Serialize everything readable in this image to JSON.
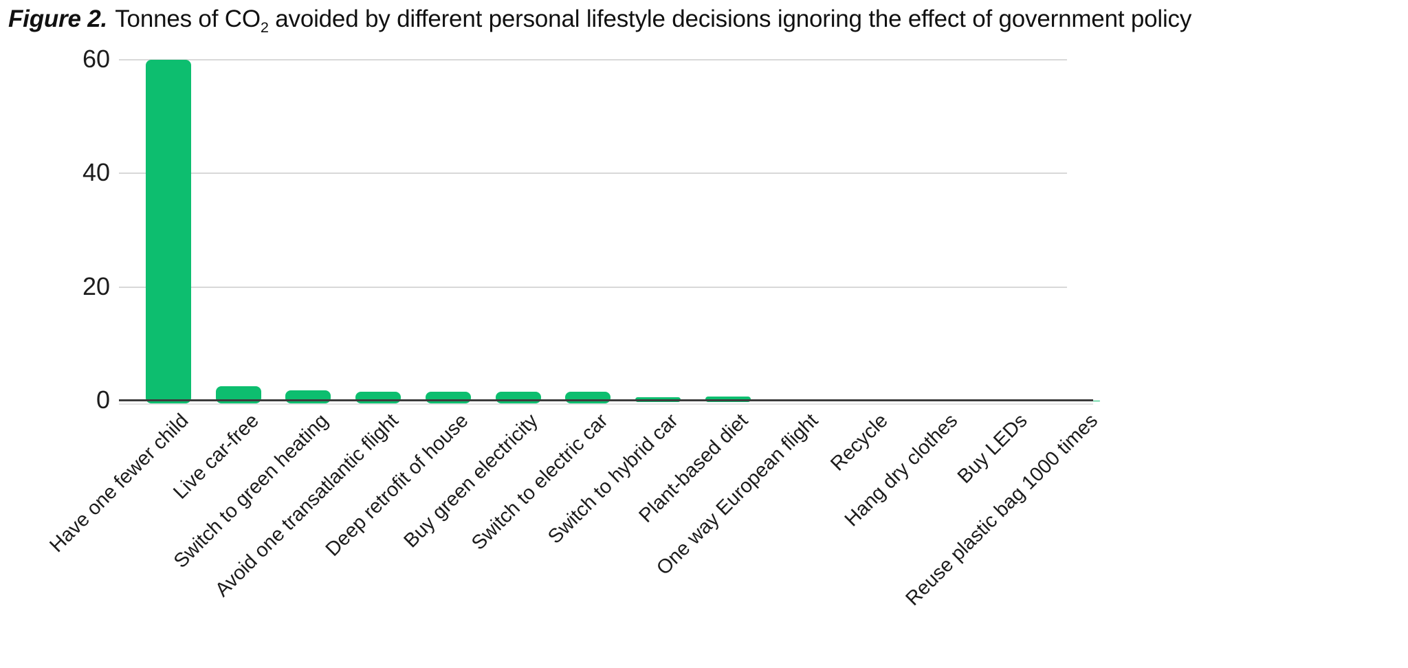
{
  "figure_label": "Figure 2.",
  "title": {
    "prefix": "Tonnes of CO",
    "subscript": "2",
    "suffix": " avoided by different personal lifestyle decisions ignoring the effect of government policy"
  },
  "colors": {
    "bar": "#0dbe6f",
    "gridline": "#d8d8d8",
    "axis_line": "#3c3c3c",
    "text": "#1c1c1c"
  },
  "chart_data": {
    "type": "bar",
    "title": "Figure 2. Tonnes of CO2 avoided by different personal lifestyle decisions ignoring the effect of government policy",
    "categories": [
      "Have one fewer child",
      "Live car-free",
      "Switch to green heating",
      "Avoid one transatlantic flight",
      "Deep retrofit of house",
      "Buy green electricity",
      "Switch to electric car",
      "Switch to hybrid car",
      "Plant-based diet",
      "One way European flight",
      "Recycle",
      "Hang dry clothes",
      "Buy LEDs",
      "Reuse plastic bag 1000 times"
    ],
    "values": [
      60,
      2.5,
      1.8,
      1.6,
      1.6,
      1.6,
      1.6,
      0.6,
      0.7,
      0.2,
      0.2,
      0.2,
      0.1,
      0.05
    ],
    "xlabel": "",
    "ylabel": "",
    "yticks": [
      0,
      20,
      40,
      60
    ],
    "ylim": [
      0,
      60
    ],
    "grid": true,
    "legend": false,
    "bar_color": "#0dbe6f"
  }
}
